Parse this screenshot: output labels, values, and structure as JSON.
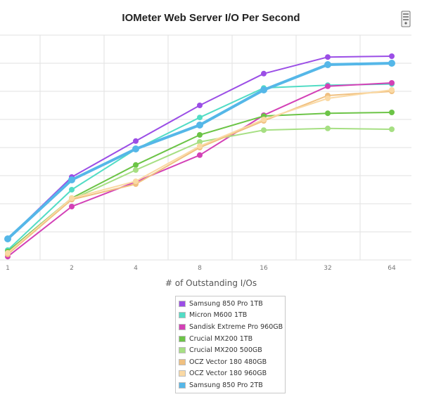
{
  "chart_data": {
    "type": "line",
    "title": "IOMeter Web Server I/O Per Second",
    "xlabel": "# of Outstanding I/Os",
    "ylabel": "",
    "categories": [
      "1",
      "2",
      "4",
      "8",
      "16",
      "32",
      "64"
    ],
    "grid": true,
    "legend_position": "bottom-center",
    "series": [
      {
        "name": "Samsung 850 Pro 1TB",
        "color": "#9b4ee6",
        "values": [
          7.5,
          29.5,
          42.3,
          55.0,
          66.3,
          72.2,
          72.5
        ]
      },
      {
        "name": "Micron M600 1TB",
        "color": "#52dcc5",
        "values": [
          3.5,
          25.0,
          39.4,
          50.7,
          61.2,
          62.2,
          62.6
        ]
      },
      {
        "name": "Sandisk Extreme Pro 960GB",
        "color": "#d340b6",
        "values": [
          1.2,
          19.0,
          27.8,
          37.3,
          51.5,
          61.8,
          63.0
        ]
      },
      {
        "name": "Crucial MX200 1TB",
        "color": "#6cc447",
        "values": [
          3.0,
          22.0,
          33.8,
          44.5,
          51.2,
          52.2,
          52.5
        ]
      },
      {
        "name": "Crucial MX200 500GB",
        "color": "#a6df83",
        "values": [
          2.5,
          21.5,
          32.0,
          42.0,
          46.2,
          46.8,
          46.5
        ]
      },
      {
        "name": "OCZ Vector 180 480GB",
        "color": "#f0c080",
        "values": [
          2.0,
          21.5,
          27.0,
          40.0,
          49.5,
          58.5,
          60.0
        ]
      },
      {
        "name": "OCZ Vector 180 960GB",
        "color": "#fad9a4",
        "values": [
          2.5,
          22.0,
          28.0,
          40.5,
          50.0,
          57.5,
          60.5
        ]
      },
      {
        "name": "Samsung 850 Pro 2TB",
        "color": "#55b7e8",
        "values": [
          7.5,
          28.5,
          39.5,
          48.0,
          60.5,
          69.5,
          70.0
        ]
      }
    ],
    "highlight_series": "Samsung 850 Pro 2TB"
  },
  "legend": {
    "items": [
      {
        "label": "Samsung 850 Pro 1TB",
        "color": "#9b4ee6"
      },
      {
        "label": "Micron M600 1TB",
        "color": "#52dcc5"
      },
      {
        "label": "Sandisk Extreme Pro 960GB",
        "color": "#d340b6"
      },
      {
        "label": "Crucial MX200 1TB",
        "color": "#6cc447"
      },
      {
        "label": "Crucial MX200 500GB",
        "color": "#a6df83"
      },
      {
        "label": "OCZ Vector 180 480GB",
        "color": "#f0c080"
      },
      {
        "label": "OCZ Vector 180 960GB",
        "color": "#fad9a4"
      },
      {
        "label": "Samsung 850 Pro 2TB",
        "color": "#55b7e8"
      }
    ]
  },
  "logo_icon": "server-logo-icon"
}
